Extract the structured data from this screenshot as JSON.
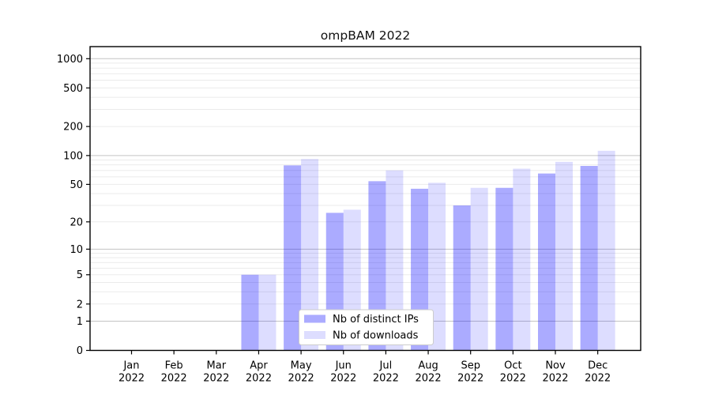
{
  "title": "ompBAM 2022",
  "chart_data": {
    "type": "bar",
    "title": "ompBAM 2022",
    "x_tick_labels": [
      {
        "month": "Jan",
        "year": "2022"
      },
      {
        "month": "Feb",
        "year": "2022"
      },
      {
        "month": "Mar",
        "year": "2022"
      },
      {
        "month": "Apr",
        "year": "2022"
      },
      {
        "month": "May",
        "year": "2022"
      },
      {
        "month": "Jun",
        "year": "2022"
      },
      {
        "month": "Jul",
        "year": "2022"
      },
      {
        "month": "Aug",
        "year": "2022"
      },
      {
        "month": "Sep",
        "year": "2022"
      },
      {
        "month": "Oct",
        "year": "2022"
      },
      {
        "month": "Nov",
        "year": "2022"
      },
      {
        "month": "Dec",
        "year": "2022"
      }
    ],
    "series": [
      {
        "name": "Nb of distinct IPs",
        "color": "rgba(0,0,255,0.33)",
        "color_hex": "#aaaaff",
        "values": [
          0,
          0,
          0,
          5,
          79,
          25,
          54,
          45,
          30,
          46,
          65,
          78
        ]
      },
      {
        "name": "Nb of downloads",
        "color": "rgba(0,0,255,0.135)",
        "color_hex": "#ddddff",
        "values": [
          0,
          0,
          0,
          5,
          92,
          27,
          70,
          52,
          46,
          73,
          86,
          112
        ]
      }
    ],
    "y_ticks": [
      0,
      1,
      2,
      5,
      10,
      20,
      50,
      100,
      200,
      500,
      1000
    ],
    "y_scale": "log10(value+1)",
    "ylim": [
      0,
      1100
    ],
    "grid": true,
    "grid_major_color": "#c3c3c3",
    "grid_minor_color": "#ebebeb",
    "legend_position": "lower center"
  }
}
